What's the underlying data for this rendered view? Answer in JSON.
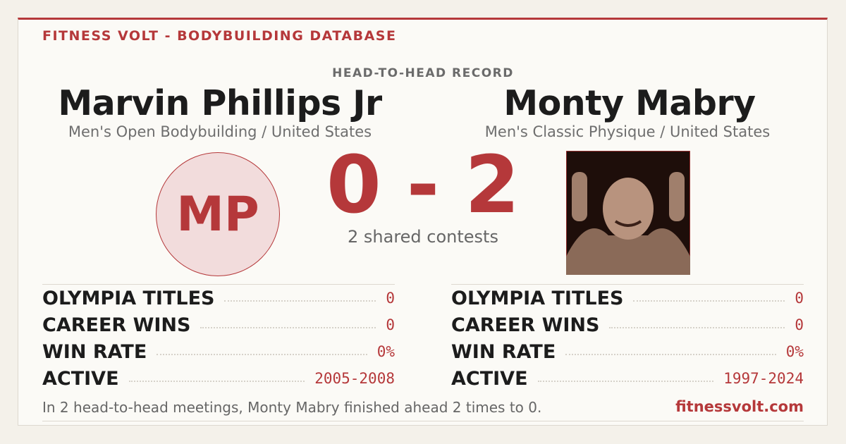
{
  "header": {
    "brand": "FITNESS VOLT - BODYBUILDING DATABASE",
    "section": "HEAD-TO-HEAD RECORD"
  },
  "athletes": [
    {
      "name": "Marvin Phillips Jr",
      "division": "Men's Open Bodybuilding / United States",
      "initials": "MP",
      "stats": [
        {
          "label": "OLYMPIA TITLES",
          "value": "0"
        },
        {
          "label": "CAREER WINS",
          "value": "0"
        },
        {
          "label": "WIN RATE",
          "value": "0%"
        },
        {
          "label": "ACTIVE",
          "value": "2005-2008"
        }
      ]
    },
    {
      "name": "Monty Mabry",
      "division": "Men's Classic Physique / United States",
      "stats": [
        {
          "label": "OLYMPIA TITLES",
          "value": "0"
        },
        {
          "label": "CAREER WINS",
          "value": "0"
        },
        {
          "label": "WIN RATE",
          "value": "0%"
        },
        {
          "label": "ACTIVE",
          "value": "1997-2024"
        }
      ]
    }
  ],
  "score": {
    "left": "0",
    "separator": "-",
    "right": "2",
    "caption": "2 shared contests"
  },
  "footer": {
    "summary": "In 2 head-to-head meetings, Monty Mabry finished ahead 2 times to 0.",
    "site": "fitnessvolt.com"
  }
}
